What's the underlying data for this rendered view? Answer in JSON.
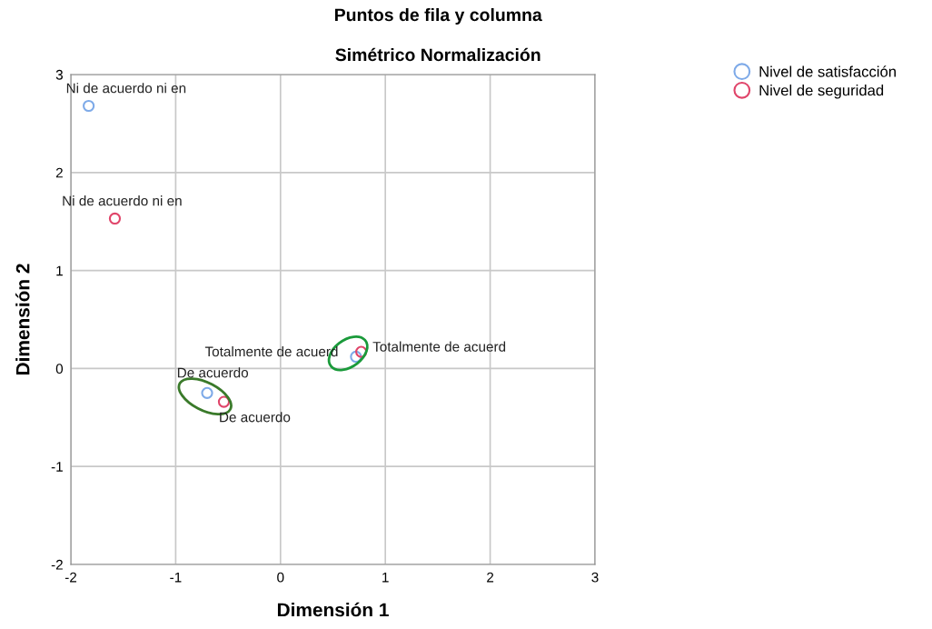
{
  "chart_data": {
    "type": "scatter",
    "title": "Puntos de fila y columna",
    "subtitle": "Simétrico Normalización",
    "xlabel": "Dimensión 1",
    "ylabel": "Dimensión 2",
    "series": [
      {
        "name": "Nivel de satisfacción",
        "color": "#7eaae8",
        "x": [
          -1.83,
          -0.7,
          0.72
        ],
        "values": [
          2.68,
          -0.25,
          0.12
        ]
      },
      {
        "name": "Nivel de seguridad",
        "color": "#e0456a",
        "x": [
          -1.58,
          -0.54,
          0.77
        ],
        "values": [
          1.53,
          -0.34,
          0.17
        ]
      }
    ],
    "annotations": [
      {
        "text": "Ni de acuerdo ni en",
        "x": -1.83,
        "y": 2.68
      },
      {
        "text": "De acuerdo",
        "x": -0.7,
        "y": -0.25
      },
      {
        "text": "Totalmente de acuerd",
        "x": 0.72,
        "y": 0.12
      },
      {
        "text": "Ni de acuerdo ni en",
        "x": -1.58,
        "y": 1.53
      },
      {
        "text": "De acuerdo",
        "x": -0.54,
        "y": -0.34
      },
      {
        "text": "Totalmente de acuerd",
        "x": 0.77,
        "y": 0.17
      }
    ],
    "xlim": [
      -2,
      3
    ],
    "ylim": [
      -2,
      3
    ],
    "xticks": [
      -2,
      -1,
      0,
      1,
      2,
      3
    ],
    "yticks": [
      -2,
      -1,
      0,
      1,
      2,
      3
    ],
    "grid": true,
    "legend": "top right",
    "marker": "circle"
  }
}
